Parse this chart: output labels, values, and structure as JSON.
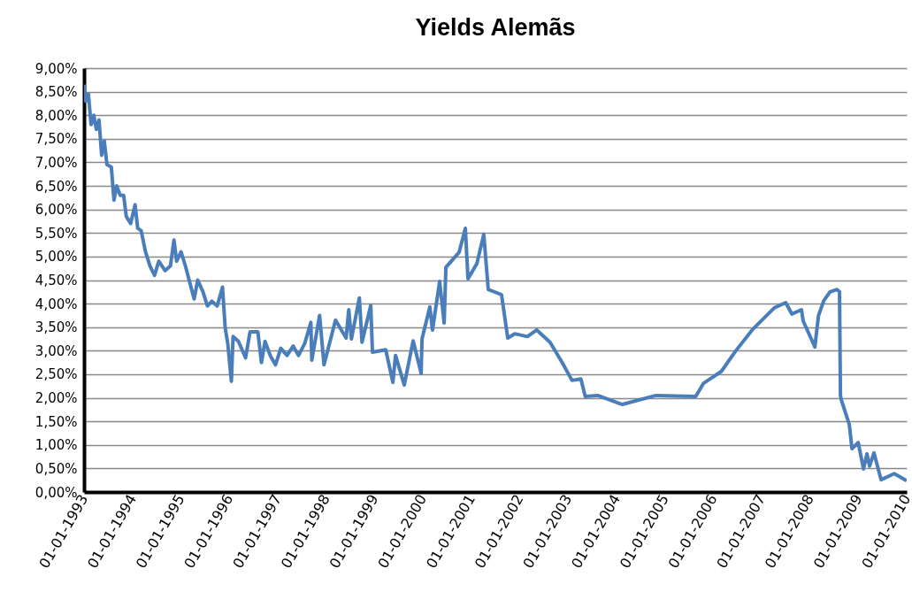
{
  "chart_data": {
    "type": "line",
    "title": "Yields Alemãs",
    "color": "#4a7ebb",
    "grid": "y",
    "legend": false,
    "marker": "none",
    "line_style": "solid",
    "x": [
      "1993-01-01",
      "1993-01-14",
      "1993-02-03",
      "1993-02-23",
      "1993-03-15",
      "1993-04-04",
      "1993-04-24",
      "1993-05-14",
      "1993-06-03",
      "1993-06-23",
      "1993-07-26",
      "1993-08-15",
      "1993-09-04",
      "1993-10-01",
      "1993-10-27",
      "1993-11-16",
      "1993-12-19",
      "1994-01-21",
      "1994-02-10",
      "1994-03-08",
      "1994-04-10",
      "1994-05-14",
      "1994-06-17",
      "1994-07-19",
      "1994-09-05",
      "1994-10-15",
      "1994-11-11",
      "1994-12-01",
      "1995-01-03",
      "1995-02-05",
      "1995-03-10",
      "1995-04-12",
      "1995-05-09",
      "1995-06-18",
      "1995-07-21",
      "1995-08-24",
      "1995-10-03",
      "1995-11-12",
      "1995-12-02",
      "1995-12-22",
      "1996-01-18",
      "1996-01-31",
      "1996-03-11",
      "1996-05-04",
      "1996-06-07",
      "1996-08-05",
      "1996-09-01",
      "1996-09-28",
      "1996-11-06",
      "1996-12-16",
      "1997-01-25",
      "1997-03-13",
      "1997-04-28",
      "1997-06-08",
      "1997-07-24",
      "1997-09-09",
      "1997-09-16",
      "1997-11-14",
      "1997-12-17",
      "1998-03-14",
      "1998-06-02",
      "1998-06-22",
      "1998-07-12",
      "1998-09-10",
      "1998-09-30",
      "1998-12-05",
      "1998-12-18",
      "1999-03-28",
      "1999-05-21",
      "1999-06-10",
      "1999-08-15",
      "1999-10-21",
      "1999-12-20",
      "1999-12-27",
      "2000-02-24",
      "2000-03-15",
      "2000-05-08",
      "2000-06-11",
      "2000-06-24",
      "2000-10-02",
      "2000-11-18",
      "2000-12-08",
      "2001-02-13",
      "2001-04-06",
      "2001-05-10",
      "2001-08-18",
      "2001-10-04",
      "2001-11-26",
      "2002-03-01",
      "2002-05-11",
      "2002-08-19",
      "2002-11-21",
      "2003-02-01",
      "2003-04-09",
      "2003-05-12",
      "2003-08-14",
      "2004-02-16",
      "2004-10-27",
      "2005-08-23",
      "2005-10-21",
      "2006-03-04",
      "2006-06-19",
      "2006-10-29",
      "2007-04-08",
      "2007-07-03",
      "2007-08-18",
      "2007-10-30",
      "2007-11-12",
      "2008-02-08",
      "2008-03-06",
      "2008-04-15",
      "2008-06-01",
      "2008-07-24",
      "2008-08-12",
      "2008-08-19",
      "2008-08-26",
      "2008-10-25",
      "2008-11-14",
      "2008-12-31",
      "2009-02-09",
      "2009-03-07",
      "2009-03-27",
      "2009-04-29",
      "2009-06-22",
      "2009-09-29",
      "2010-01-01"
    ],
    "values": [
      8.65,
      8.3,
      8.45,
      7.8,
      8.0,
      7.7,
      7.9,
      7.15,
      7.45,
      6.95,
      6.9,
      6.2,
      6.5,
      6.3,
      6.3,
      5.85,
      5.7,
      6.1,
      5.6,
      5.55,
      5.1,
      4.8,
      4.6,
      4.9,
      4.7,
      4.8,
      5.35,
      4.9,
      5.1,
      4.8,
      4.45,
      4.1,
      4.5,
      4.25,
      3.95,
      4.05,
      3.95,
      4.35,
      3.5,
      3.15,
      2.35,
      3.3,
      3.2,
      2.85,
      3.4,
      3.4,
      2.75,
      3.2,
      2.9,
      2.7,
      3.05,
      2.9,
      3.1,
      2.9,
      3.15,
      3.6,
      2.8,
      3.75,
      2.7,
      3.65,
      3.27,
      3.87,
      3.25,
      4.12,
      3.18,
      3.96,
      2.97,
      3.02,
      2.33,
      2.9,
      2.27,
      3.21,
      2.52,
      3.25,
      3.93,
      3.44,
      4.47,
      3.59,
      4.77,
      5.09,
      5.6,
      4.53,
      4.85,
      5.47,
      4.3,
      4.19,
      3.27,
      3.36,
      3.3,
      3.44,
      3.18,
      2.74,
      2.37,
      2.4,
      2.03,
      2.05,
      1.86,
      2.05,
      2.03,
      2.31,
      2.56,
      2.99,
      3.46,
      3.91,
      4.02,
      3.78,
      3.87,
      3.63,
      3.08,
      3.74,
      4.06,
      4.25,
      4.3,
      4.25,
      2.05,
      1.95,
      1.43,
      0.92,
      1.05,
      0.49,
      0.81,
      0.55,
      0.83,
      0.26,
      0.39,
      0.24
    ],
    "xlim": [
      "1993-01-01",
      "2010-01-01"
    ],
    "xticks": [
      {
        "value": "1993-01-01",
        "label": "01-01-1993"
      },
      {
        "value": "1994-01-01",
        "label": "01-01-1994"
      },
      {
        "value": "1995-01-01",
        "label": "01-01-1995"
      },
      {
        "value": "1996-01-01",
        "label": "01-01-1996"
      },
      {
        "value": "1997-01-01",
        "label": "01-01-1997"
      },
      {
        "value": "1998-01-01",
        "label": "01-01-1998"
      },
      {
        "value": "1999-01-01",
        "label": "01-01-1999"
      },
      {
        "value": "2000-01-01",
        "label": "01-01-2000"
      },
      {
        "value": "2001-01-01",
        "label": "01-01-2001"
      },
      {
        "value": "2002-01-01",
        "label": "01-01-2002"
      },
      {
        "value": "2003-01-01",
        "label": "01-01-2003"
      },
      {
        "value": "2004-01-01",
        "label": "01-01-2004"
      },
      {
        "value": "2005-01-01",
        "label": "01-01-2005"
      },
      {
        "value": "2006-01-01",
        "label": "01-01-2006"
      },
      {
        "value": "2007-01-01",
        "label": "01-01-2007"
      },
      {
        "value": "2008-01-01",
        "label": "01-01-2008"
      },
      {
        "value": "2009-01-01",
        "label": "01-01-2009"
      },
      {
        "value": "2010-01-01",
        "label": "01-01-2010"
      }
    ],
    "ylim": [
      0,
      9
    ],
    "yticks": [
      {
        "value": 0,
        "label": "0,00%"
      },
      {
        "value": 0.5,
        "label": "0,50%"
      },
      {
        "value": 1,
        "label": "1,00%"
      },
      {
        "value": 1.5,
        "label": "1,50%"
      },
      {
        "value": 2,
        "label": "2,00%"
      },
      {
        "value": 2.5,
        "label": "2,50%"
      },
      {
        "value": 3,
        "label": "3,00%"
      },
      {
        "value": 3.5,
        "label": "3,50%"
      },
      {
        "value": 4,
        "label": "4,00%"
      },
      {
        "value": 4.5,
        "label": "4,50%"
      },
      {
        "value": 5,
        "label": "5,00%"
      },
      {
        "value": 5.5,
        "label": "5,50%"
      },
      {
        "value": 6,
        "label": "6,00%"
      },
      {
        "value": 6.5,
        "label": "6,50%"
      },
      {
        "value": 7,
        "label": "7,00%"
      },
      {
        "value": 7.5,
        "label": "7,50%"
      },
      {
        "value": 8,
        "label": "8,00%"
      },
      {
        "value": 8.5,
        "label": "8,50%"
      },
      {
        "value": 9,
        "label": "9,00%"
      }
    ]
  }
}
